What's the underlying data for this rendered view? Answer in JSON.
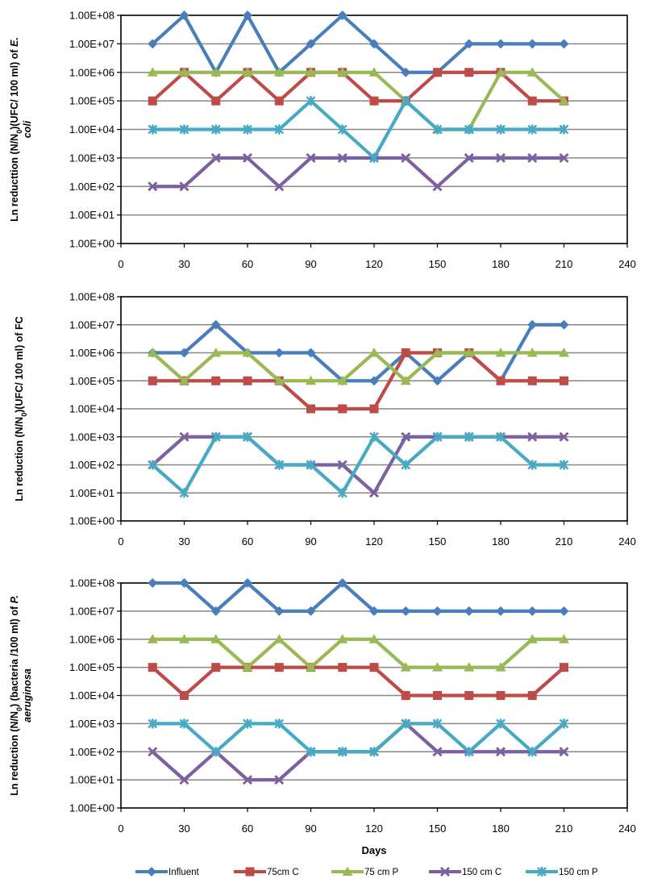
{
  "chart_data": [
    {
      "type": "line",
      "ylabel_parts": [
        "Ln reducttion (N/N",
        "0",
        ")(UFC/ 100 ml) of ",
        "E.",
        "coli"
      ],
      "xlabel": "",
      "yscale": "log",
      "ylim": [
        1,
        100000000
      ],
      "xlim": [
        0,
        240
      ],
      "x_ticks": [
        "0",
        "30",
        "60",
        "90",
        "120",
        "150",
        "180",
        "210",
        "240"
      ],
      "y_ticks": [
        "1.00E+00",
        "1.00E+01",
        "1.00E+02",
        "1.00E+03",
        "1.00E+04",
        "1.00E+05",
        "1.00E+06",
        "1.00E+07",
        "1.00E+08"
      ],
      "grid": "horizontal",
      "x": [
        15,
        30,
        45,
        60,
        75,
        90,
        105,
        120,
        135,
        150,
        165,
        180,
        195,
        210
      ],
      "series": [
        {
          "name": "Influent",
          "values": [
            10000000,
            100000000,
            1000000,
            100000000,
            1000000,
            10000000,
            100000000,
            10000000,
            1000000,
            1000000,
            10000000,
            10000000,
            10000000,
            10000000
          ]
        },
        {
          "name": "75cm C",
          "values": [
            100000,
            1000000,
            100000,
            1000000,
            100000,
            1000000,
            1000000,
            100000,
            100000,
            1000000,
            1000000,
            1000000,
            100000,
            100000
          ]
        },
        {
          "name": "75 cm P",
          "values": [
            1000000,
            1000000,
            1000000,
            1000000,
            1000000,
            1000000,
            1000000,
            1000000,
            100000,
            10000,
            10000,
            1000000,
            1000000,
            100000
          ]
        },
        {
          "name": "150 cm C",
          "values": [
            100,
            100,
            1000,
            1000,
            100,
            1000,
            1000,
            1000,
            1000,
            100,
            1000,
            1000,
            1000,
            1000
          ]
        },
        {
          "name": "150 cm P",
          "values": [
            10000,
            10000,
            10000,
            10000,
            10000,
            100000,
            10000,
            1000,
            100000,
            10000,
            10000,
            10000,
            10000,
            10000
          ]
        }
      ]
    },
    {
      "type": "line",
      "ylabel_parts": [
        "Ln reduction (N/N",
        "0",
        ")(UFC/ 100 ml) of FC",
        "",
        ""
      ],
      "xlabel": "",
      "yscale": "log",
      "ylim": [
        1,
        100000000
      ],
      "xlim": [
        0,
        240
      ],
      "x_ticks": [
        "0",
        "30",
        "60",
        "90",
        "120",
        "150",
        "180",
        "210",
        "240"
      ],
      "y_ticks": [
        "1.00E+00",
        "1.00E+01",
        "1.00E+02",
        "1.00E+03",
        "1.00E+04",
        "1.00E+05",
        "1.00E+06",
        "1.00E+07",
        "1.00E+08"
      ],
      "grid": "horizontal",
      "x": [
        15,
        30,
        45,
        60,
        75,
        90,
        105,
        120,
        135,
        150,
        165,
        180,
        195,
        210
      ],
      "series": [
        {
          "name": "Influent",
          "values": [
            1000000,
            1000000,
            10000000,
            1000000,
            1000000,
            1000000,
            100000,
            100000,
            1000000,
            100000,
            1000000,
            100000,
            10000000,
            10000000
          ]
        },
        {
          "name": "75cm C",
          "values": [
            100000,
            100000,
            100000,
            100000,
            100000,
            10000,
            10000,
            10000,
            1000000,
            1000000,
            1000000,
            100000,
            100000,
            100000
          ]
        },
        {
          "name": "75 cm P",
          "values": [
            1000000,
            100000,
            1000000,
            1000000,
            100000,
            100000,
            100000,
            1000000,
            100000,
            1000000,
            1000000,
            1000000,
            1000000,
            1000000
          ]
        },
        {
          "name": "150 cm C",
          "values": [
            100,
            1000,
            1000,
            1000,
            100,
            100,
            100,
            10,
            1000,
            1000,
            1000,
            1000,
            1000,
            1000
          ]
        },
        {
          "name": "150 cm P",
          "values": [
            100,
            10,
            1000,
            1000,
            100,
            100,
            10,
            1000,
            100,
            1000,
            1000,
            1000,
            100,
            100
          ]
        }
      ]
    },
    {
      "type": "line",
      "ylabel_parts": [
        "Ln reduction (N/N",
        "0",
        ") (bacteria /100 ml) of ",
        "P.",
        "aeruginosa"
      ],
      "xlabel": "Days",
      "yscale": "log",
      "ylim": [
        1,
        100000000
      ],
      "xlim": [
        0,
        240
      ],
      "x_ticks": [
        "0",
        "30",
        "60",
        "90",
        "120",
        "150",
        "180",
        "210",
        "240"
      ],
      "y_ticks": [
        "1.00E+00",
        "1.00E+01",
        "1.00E+02",
        "1.00E+03",
        "1.00E+04",
        "1.00E+05",
        "1.00E+06",
        "1.00E+07",
        "1.00E+08"
      ],
      "grid": "horizontal",
      "x": [
        15,
        30,
        45,
        60,
        75,
        90,
        105,
        120,
        135,
        150,
        165,
        180,
        195,
        210
      ],
      "series": [
        {
          "name": "Influent",
          "values": [
            100000000,
            100000000,
            10000000,
            100000000,
            10000000,
            10000000,
            100000000,
            10000000,
            10000000,
            10000000,
            10000000,
            10000000,
            10000000,
            10000000
          ]
        },
        {
          "name": "75cm C",
          "values": [
            100000,
            10000,
            100000,
            100000,
            100000,
            100000,
            100000,
            100000,
            10000,
            10000,
            10000,
            10000,
            10000,
            100000
          ]
        },
        {
          "name": "75 cm P",
          "values": [
            1000000,
            1000000,
            1000000,
            100000,
            1000000,
            100000,
            1000000,
            1000000,
            100000,
            100000,
            100000,
            100000,
            1000000,
            1000000
          ]
        },
        {
          "name": "150 cm C",
          "values": [
            100,
            10,
            100,
            10,
            10,
            100,
            100,
            100,
            1000,
            100,
            100,
            100,
            100,
            100
          ]
        },
        {
          "name": "150 cm P",
          "values": [
            1000,
            1000,
            100,
            1000,
            1000,
            100,
            100,
            100,
            1000,
            1000,
            100,
            1000,
            100,
            1000
          ]
        }
      ]
    }
  ],
  "legend": {
    "placement": "bottom",
    "items": [
      {
        "label": "Influent",
        "color": "#4a7ebb",
        "marker": "diamond"
      },
      {
        "label": "75cm C",
        "color": "#be4b48",
        "marker": "square"
      },
      {
        "label": "75 cm P",
        "color": "#98b954",
        "marker": "triangle"
      },
      {
        "label": "150 cm C",
        "color": "#7d60a0",
        "marker": "x"
      },
      {
        "label": "150 cm P",
        "color": "#46aac5",
        "marker": "star"
      }
    ]
  }
}
